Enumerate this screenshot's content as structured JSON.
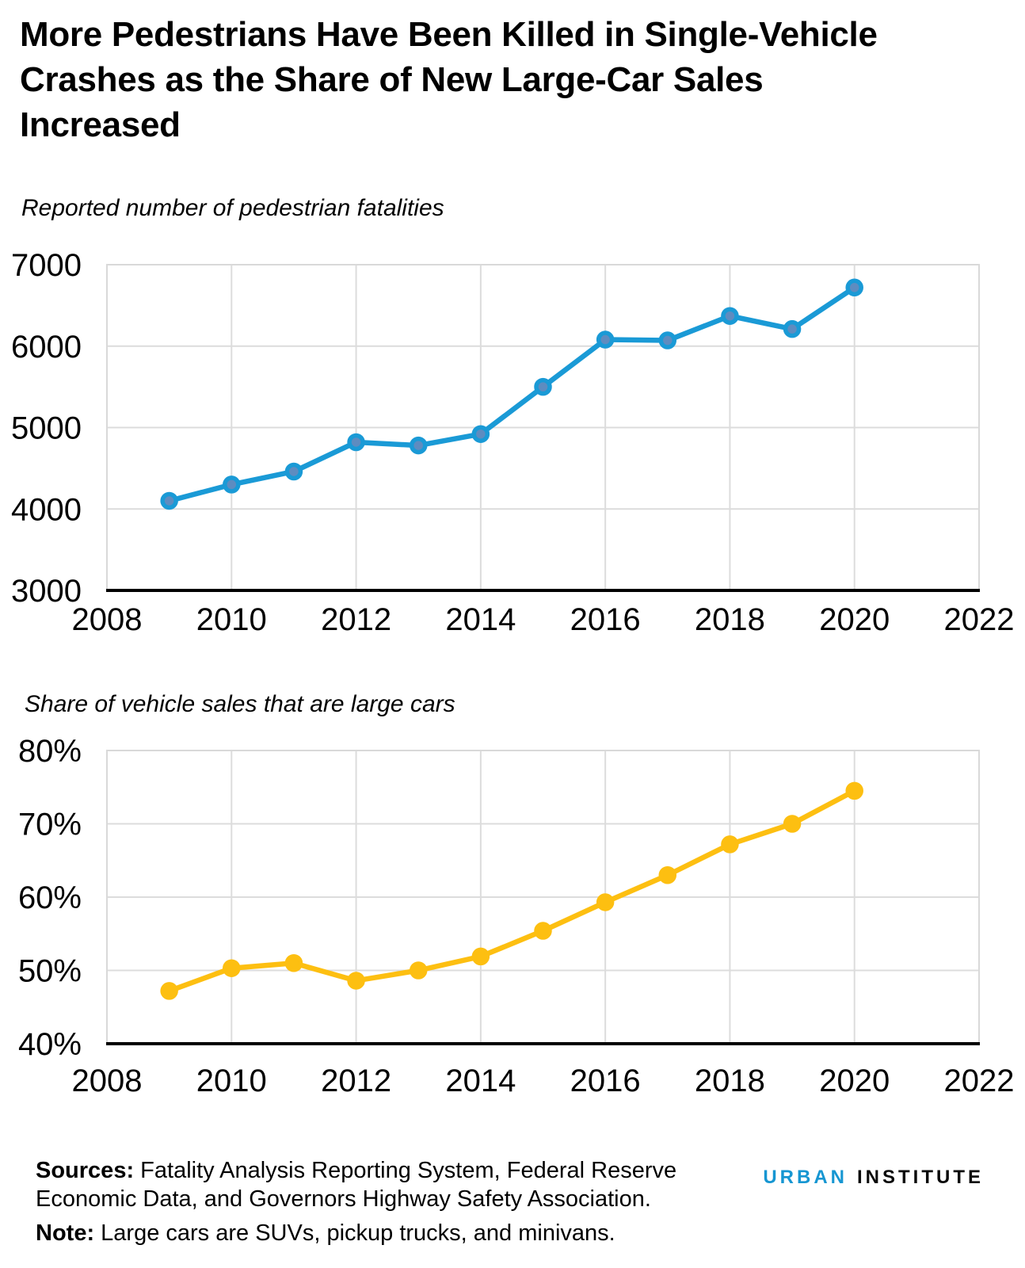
{
  "title_lines": [
    "More Pedestrians Have Been Killed in Single-Vehicle",
    "Crashes as the Share of New Large-Car Sales",
    "Increased"
  ],
  "chart_data": [
    {
      "type": "line",
      "title": "Reported number of pedestrian fatalities",
      "series_name": "Reported pedestrian fatalities",
      "x": [
        2009,
        2010,
        2011,
        2012,
        2013,
        2014,
        2015,
        2016,
        2017,
        2018,
        2019,
        2020
      ],
      "values": [
        4100,
        4300,
        4460,
        4820,
        4780,
        4920,
        5500,
        6080,
        6070,
        6370,
        6210,
        6720
      ],
      "xlim": [
        2008,
        2022
      ],
      "ylim": [
        3000,
        7000
      ],
      "xticks": [
        2008,
        2010,
        2012,
        2014,
        2016,
        2018,
        2020,
        2022
      ],
      "yticks": [
        3000,
        4000,
        5000,
        6000,
        7000
      ],
      "ytick_format": "plain",
      "grid": true,
      "legend_position": "none",
      "line_color": "#1a9ad6",
      "marker_fill": "#5e8cc0",
      "marker_edge": "#1a9ad6"
    },
    {
      "type": "line",
      "title": "Share of vehicle sales that are large cars",
      "series_name": "Share of vehicle sales that are large cars",
      "x": [
        2009,
        2010,
        2011,
        2012,
        2013,
        2014,
        2015,
        2016,
        2017,
        2018,
        2019,
        2020
      ],
      "values": [
        47.2,
        50.3,
        51.0,
        48.6,
        50.0,
        51.9,
        55.4,
        59.3,
        63.0,
        67.2,
        70.0,
        74.5
      ],
      "xlim": [
        2008,
        2022
      ],
      "ylim": [
        40,
        80
      ],
      "xticks": [
        2008,
        2010,
        2012,
        2014,
        2016,
        2018,
        2020,
        2022
      ],
      "yticks": [
        40,
        50,
        60,
        70,
        80
      ],
      "ytick_format": "percent",
      "grid": true,
      "legend_position": "none",
      "line_color": "#fdbf11",
      "marker_fill": "#fdbf11",
      "marker_edge": "#fdbf11"
    }
  ],
  "footer": {
    "sources_label": "Sources:",
    "sources_text": " Fatality Analysis Reporting System, Federal Reserve Economic Data, and Governors Highway Safety Association.",
    "note_label": "Note:",
    "note_text": " Large cars are SUVs, pickup trucks, and minivans."
  },
  "logo": {
    "word1": "URBAN",
    "word2": "INSTITUTE",
    "word1_color": "#1696d2"
  },
  "style_colors": {
    "gridline": "#dcdcdc",
    "plot_border": "#d9d9d9",
    "axis_line": "#000000",
    "accent_blue": "#1696d2",
    "accent_yellow": "#fdbf11"
  }
}
